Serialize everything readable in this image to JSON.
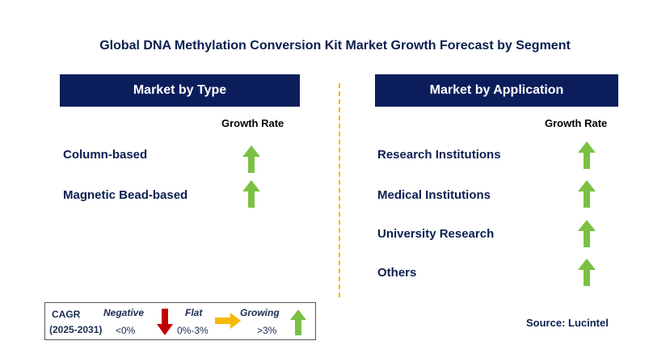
{
  "title": "Global DNA Methylation Conversion Kit Market Growth Forecast by Segment",
  "left_panel": {
    "header": "Market by Type",
    "growth_rate_label": "Growth Rate",
    "items": [
      {
        "label": "Column-based",
        "trend": "growing"
      },
      {
        "label": "Magnetic Bead-based",
        "trend": "growing"
      }
    ]
  },
  "right_panel": {
    "header": "Market by Application",
    "growth_rate_label": "Growth Rate",
    "items": [
      {
        "label": "Research Institutions",
        "trend": "growing"
      },
      {
        "label": "Medical Institutions",
        "trend": "growing"
      },
      {
        "label": "University Research",
        "trend": "growing"
      },
      {
        "label": "Others",
        "trend": "growing"
      }
    ]
  },
  "legend": {
    "cagr": "CAGR",
    "period": "(2025-2031)",
    "negative_label": "Negative",
    "negative_range": "<0%",
    "flat_label": "Flat",
    "flat_range": "0%-3%",
    "growing_label": "Growing",
    "growing_range": ">3%"
  },
  "source": "Source: Lucintel",
  "colors": {
    "header_bg": "#0b1e5b",
    "growing": "#7ac143",
    "negative": "#c00000",
    "flat": "#f5b800",
    "divider": "#f5b800"
  }
}
